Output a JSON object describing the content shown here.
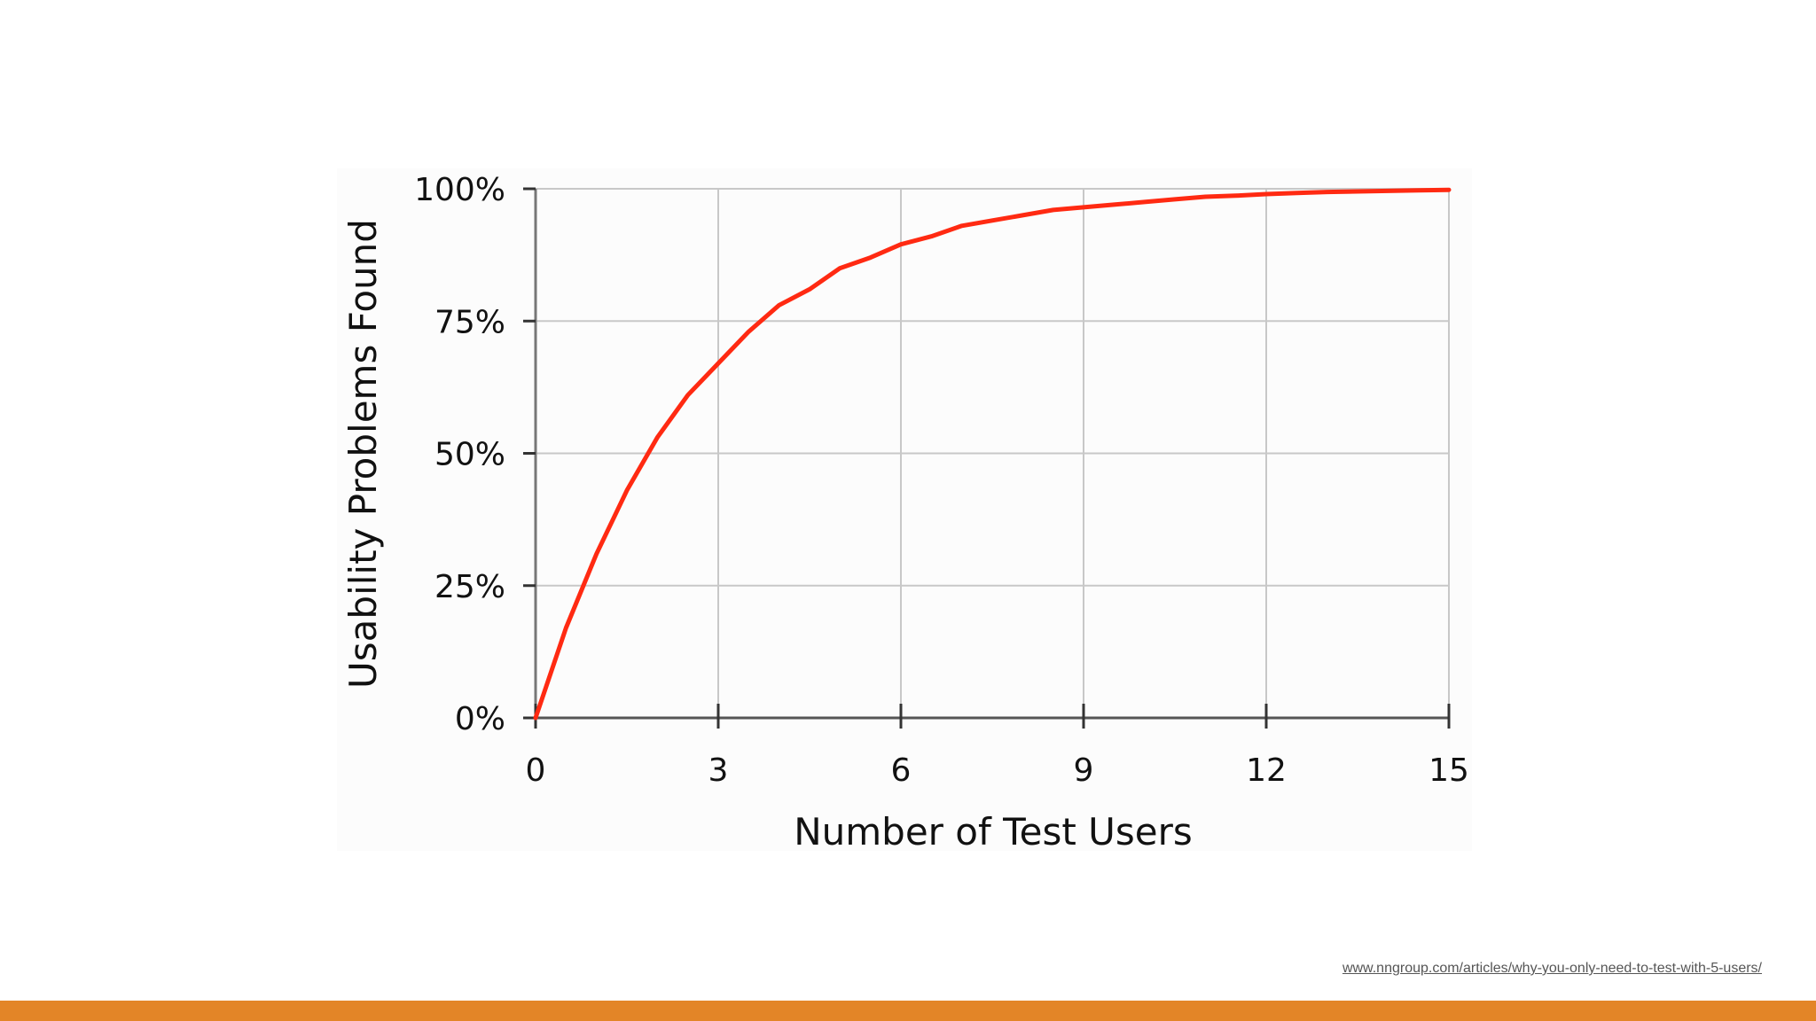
{
  "slide": {
    "source_link": "www.nngroup.com/articles/why-you-only-need-to-test-with-5-users/",
    "accent_color": "#e38527"
  },
  "chart_data": {
    "type": "line",
    "title": "",
    "xlabel": "Number of Test Users",
    "ylabel": "Usability Problems Found",
    "xlim": [
      0,
      15
    ],
    "ylim": [
      0,
      100
    ],
    "x_ticks": [
      0,
      3,
      6,
      9,
      12,
      15
    ],
    "x_tick_labels": [
      "0",
      "3",
      "6",
      "9",
      "12",
      "15"
    ],
    "y_ticks": [
      0,
      25,
      50,
      75,
      100
    ],
    "y_tick_labels": [
      "0%",
      "25%",
      "50%",
      "75%",
      "100%"
    ],
    "grid": true,
    "legend": "none",
    "series": [
      {
        "color": "#ff2a12",
        "x": [
          0,
          0.5,
          1,
          1.5,
          2,
          2.5,
          3,
          3.5,
          4,
          4.5,
          5,
          5.5,
          6,
          6.5,
          7,
          7.5,
          8,
          8.5,
          9,
          9.5,
          10,
          10.5,
          11,
          11.5,
          12,
          12.5,
          13,
          13.5,
          14,
          14.5,
          15
        ],
        "y": [
          0,
          17,
          31,
          43,
          53,
          61,
          67,
          73,
          78,
          81,
          85,
          87,
          89.5,
          91,
          93,
          94,
          95,
          96,
          96.5,
          97,
          97.5,
          98,
          98.5,
          98.7,
          99,
          99.2,
          99.4,
          99.5,
          99.6,
          99.7,
          99.8
        ]
      }
    ]
  }
}
